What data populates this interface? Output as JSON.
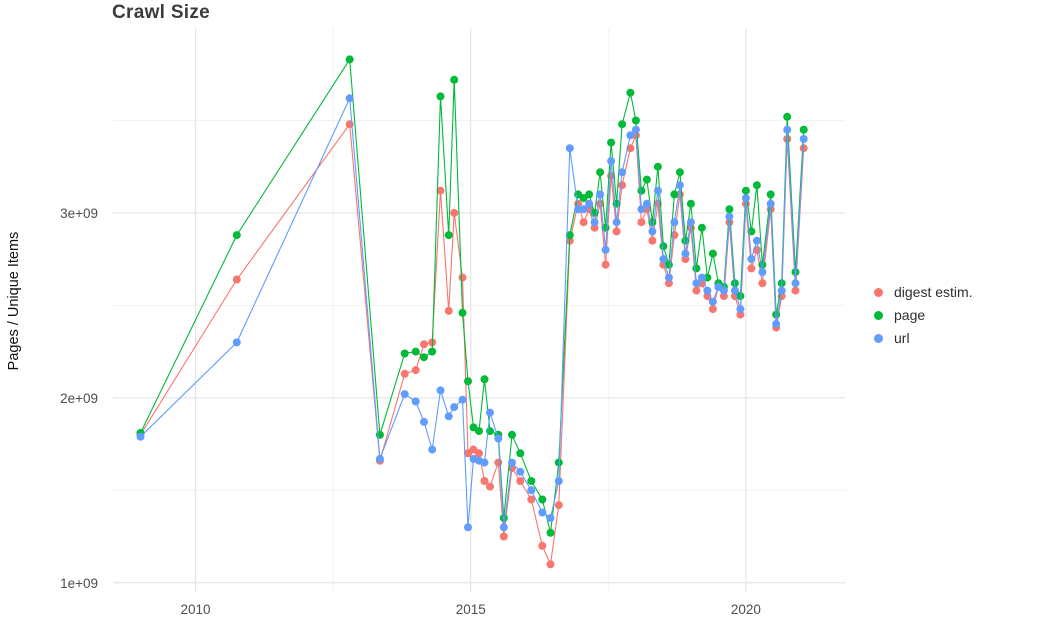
{
  "page": {
    "title": "Crawl Size"
  },
  "chart_data": {
    "type": "line",
    "title": "Crawl Size",
    "xlabel": "",
    "ylabel": "Pages / Unique Items",
    "legend_position": "right",
    "grid": true,
    "background": "#FFFFFF",
    "grid_color": "#E4E4E4",
    "minor_grid_color": "#F2F2F2",
    "tick_label_color": "#4d4d4d",
    "x_domain": [
      2008.5,
      2021.8
    ],
    "y_domain": [
      950000000.0,
      4000000000.0
    ],
    "x_ticks": [
      {
        "value": 2010,
        "label": "2010"
      },
      {
        "value": 2015,
        "label": "2015"
      },
      {
        "value": 2020,
        "label": "2020"
      }
    ],
    "x_minor_ticks": [
      2012.5,
      2017.5
    ],
    "y_ticks": [
      {
        "value": 1000000000.0,
        "label": "1e+09"
      },
      {
        "value": 2000000000.0,
        "label": "2e+09"
      },
      {
        "value": 3000000000.0,
        "label": "3e+09"
      }
    ],
    "y_minor_ticks": [
      1500000000.0,
      2500000000.0,
      3500000000.0
    ],
    "x": [
      2009.0,
      2010.75,
      2012.8,
      2013.35,
      2013.8,
      2014.0,
      2014.15,
      2014.3,
      2014.45,
      2014.6,
      2014.7,
      2014.85,
      2014.95,
      2015.05,
      2015.15,
      2015.25,
      2015.35,
      2015.5,
      2015.6,
      2015.75,
      2015.9,
      2016.1,
      2016.3,
      2016.45,
      2016.6,
      2016.8,
      2016.95,
      2017.05,
      2017.15,
      2017.25,
      2017.35,
      2017.45,
      2017.55,
      2017.65,
      2017.75,
      2017.9,
      2018.0,
      2018.1,
      2018.2,
      2018.3,
      2018.4,
      2018.5,
      2018.6,
      2018.7,
      2018.8,
      2018.9,
      2019.0,
      2019.1,
      2019.2,
      2019.3,
      2019.4,
      2019.5,
      2019.6,
      2019.7,
      2019.8,
      2019.9,
      2020.0,
      2020.1,
      2020.2,
      2020.3,
      2020.45,
      2020.55,
      2020.65,
      2020.75,
      2020.9,
      2021.05
    ],
    "series": [
      {
        "name": "digest estim.",
        "color": "#F8766D",
        "values": [
          1800000000.0,
          2640000000.0,
          3480000000.0,
          1660000000.0,
          2130000000.0,
          2150000000.0,
          2290000000.0,
          2300000000.0,
          3120000000.0,
          2470000000.0,
          3000000000.0,
          2650000000.0,
          1700000000.0,
          1720000000.0,
          1700000000.0,
          1550000000.0,
          1520000000.0,
          1650000000.0,
          1250000000.0,
          1620000000.0,
          1550000000.0,
          1450000000.0,
          1200000000.0,
          1100000000.0,
          1420000000.0,
          2850000000.0,
          3050000000.0,
          2950000000.0,
          3020000000.0,
          2920000000.0,
          3050000000.0,
          2720000000.0,
          3200000000.0,
          2900000000.0,
          3150000000.0,
          3350000000.0,
          3420000000.0,
          2950000000.0,
          3020000000.0,
          2850000000.0,
          3050000000.0,
          2720000000.0,
          2620000000.0,
          2880000000.0,
          3100000000.0,
          2750000000.0,
          2920000000.0,
          2580000000.0,
          2620000000.0,
          2550000000.0,
          2480000000.0,
          2600000000.0,
          2550000000.0,
          2950000000.0,
          2550000000.0,
          2450000000.0,
          3050000000.0,
          2700000000.0,
          2800000000.0,
          2620000000.0,
          3020000000.0,
          2380000000.0,
          2550000000.0,
          3400000000.0,
          2580000000.0,
          3350000000.0
        ]
      },
      {
        "name": "page",
        "color": "#00BA38",
        "values": [
          1810000000.0,
          2880000000.0,
          3830000000.0,
          1800000000.0,
          2240000000.0,
          2250000000.0,
          2220000000.0,
          2250000000.0,
          3630000000.0,
          2880000000.0,
          3720000000.0,
          2460000000.0,
          2090000000.0,
          1840000000.0,
          1820000000.0,
          2100000000.0,
          1820000000.0,
          1800000000.0,
          1350000000.0,
          1800000000.0,
          1700000000.0,
          1550000000.0,
          1450000000.0,
          1270000000.0,
          1650000000.0,
          2880000000.0,
          3100000000.0,
          3080000000.0,
          3100000000.0,
          3000000000.0,
          3220000000.0,
          2920000000.0,
          3380000000.0,
          3050000000.0,
          3480000000.0,
          3650000000.0,
          3500000000.0,
          3120000000.0,
          3180000000.0,
          2950000000.0,
          3250000000.0,
          2820000000.0,
          2720000000.0,
          3100000000.0,
          3220000000.0,
          2850000000.0,
          3050000000.0,
          2700000000.0,
          2920000000.0,
          2650000000.0,
          2780000000.0,
          2620000000.0,
          2600000000.0,
          3020000000.0,
          2620000000.0,
          2550000000.0,
          3120000000.0,
          2900000000.0,
          3150000000.0,
          2720000000.0,
          3100000000.0,
          2450000000.0,
          2620000000.0,
          3520000000.0,
          2680000000.0,
          3450000000.0
        ]
      },
      {
        "name": "url",
        "color": "#619CFF",
        "values": [
          1790000000.0,
          2300000000.0,
          3620000000.0,
          1670000000.0,
          2020000000.0,
          1980000000.0,
          1870000000.0,
          1720000000.0,
          2040000000.0,
          1900000000.0,
          1950000000.0,
          1990000000.0,
          1300000000.0,
          1670000000.0,
          1660000000.0,
          1650000000.0,
          1920000000.0,
          1780000000.0,
          1300000000.0,
          1650000000.0,
          1600000000.0,
          1500000000.0,
          1380000000.0,
          1350000000.0,
          1550000000.0,
          3350000000.0,
          3020000000.0,
          3020000000.0,
          3050000000.0,
          2950000000.0,
          3100000000.0,
          2800000000.0,
          3280000000.0,
          2950000000.0,
          3220000000.0,
          3420000000.0,
          3450000000.0,
          3020000000.0,
          3050000000.0,
          2900000000.0,
          3120000000.0,
          2750000000.0,
          2650000000.0,
          2950000000.0,
          3150000000.0,
          2780000000.0,
          2950000000.0,
          2620000000.0,
          2650000000.0,
          2580000000.0,
          2520000000.0,
          2600000000.0,
          2580000000.0,
          2980000000.0,
          2580000000.0,
          2480000000.0,
          3080000000.0,
          2750000000.0,
          2850000000.0,
          2680000000.0,
          3050000000.0,
          2400000000.0,
          2580000000.0,
          3450000000.0,
          2620000000.0,
          3400000000.0
        ]
      }
    ]
  }
}
